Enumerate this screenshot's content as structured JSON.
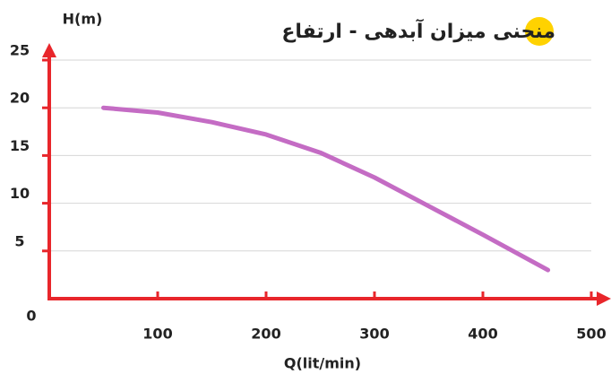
{
  "chart_data": {
    "type": "line",
    "title": "منحنی میزان آبدهی - ارتفاع",
    "y_label": "H(m)",
    "x_label": "Q(lit/min)",
    "x": [
      50,
      100,
      150,
      200,
      250,
      300,
      350,
      400,
      460
    ],
    "series": [
      {
        "color": "#c46cc4",
        "values": [
          20,
          19.5,
          18.5,
          17.2,
          15.3,
          12.7,
          9.7,
          6.7,
          3
        ]
      }
    ],
    "xlim": [
      0,
      500
    ],
    "xticks": [
      0,
      100,
      200,
      300,
      400,
      500
    ],
    "ylim": [
      0,
      25
    ],
    "yticks": [
      5,
      10,
      15,
      20,
      25
    ],
    "grid": true,
    "axis_color": "#e8262b",
    "highlight_color": "#ffd200"
  }
}
